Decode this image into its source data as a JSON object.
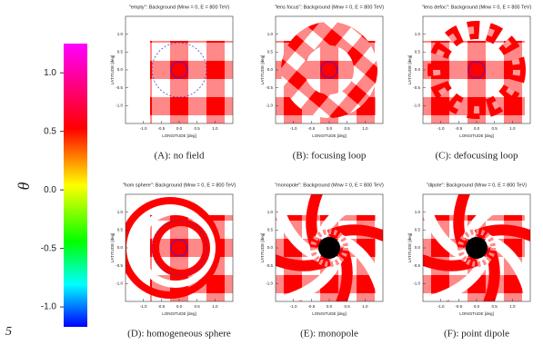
{
  "colorbar": {
    "label": "θ",
    "lim": [
      -1.17,
      1.25
    ],
    "ticks": [
      {
        "value": -1,
        "label": "-1.0"
      },
      -0.5,
      {
        "value": 0,
        "label": "0.0"
      },
      0.5,
      {
        "value": 1,
        "label": "1.0"
      }
    ]
  },
  "axes": {
    "x_label": "LONGITUDE [deg]",
    "y_label": "LATITUDE [deg]",
    "lim": [
      -1.5,
      1.5
    ],
    "ticks": [
      {
        "value": -1,
        "label": "-1.0"
      },
      -0.5,
      {
        "value": 0,
        "label": "0.0"
      },
      0.5,
      {
        "value": 1,
        "label": "1.0"
      }
    ]
  },
  "panels": [
    {
      "title": "\"empty\": Background (Mnw = 0, E = 800 TeV)",
      "caption": "(A): no field"
    },
    {
      "title": "\"lens focus\": Background (Mnw = 0, E = 800 TeV)",
      "caption": "(B): focusing loop"
    },
    {
      "title": "\"lens defoc\": Background (Mnw = 0, E = 800 TeV)",
      "caption": "(C): defocusing loop"
    },
    {
      "title": "\"hom sphere\": Background (Mnw = 0, E = 800 TeV)",
      "caption": "(D): homogeneous sphere"
    },
    {
      "title": "\"monopole\": Background (Mnw = 0, E = 800 TeV)",
      "caption": "(E): monopole"
    },
    {
      "title": "\"dipole\": Background (Mnw = 0, E = 800 TeV)",
      "caption": "(F): point dipole"
    }
  ],
  "page_number": "5"
}
